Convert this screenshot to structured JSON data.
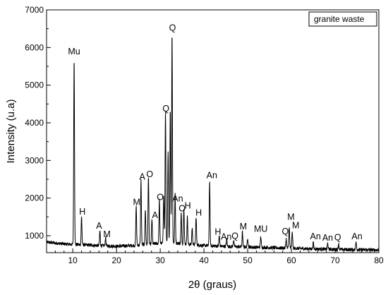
{
  "chart_data": {
    "type": "line",
    "xlabel": "2θ (graus)",
    "ylabel": "Intensity (u.a)",
    "xlim": [
      4,
      80
    ],
    "ylim": [
      550,
      7000
    ],
    "xticks": [
      10,
      20,
      30,
      40,
      50,
      60,
      70,
      80
    ],
    "yticks": [
      1000,
      2000,
      3000,
      4000,
      5000,
      6000,
      7000
    ],
    "grid": false,
    "legend": {
      "position": "top-right",
      "entries": [
        "granite waste"
      ]
    },
    "series": [
      {
        "name": "granite waste",
        "baseline": [
          [
            4,
            830
          ],
          [
            8,
            780
          ],
          [
            12,
            760
          ],
          [
            16,
            740
          ],
          [
            20,
            720
          ],
          [
            24,
            740
          ],
          [
            28,
            780
          ],
          [
            32,
            820
          ],
          [
            36,
            780
          ],
          [
            40,
            740
          ],
          [
            44,
            720
          ],
          [
            50,
            700
          ],
          [
            56,
            680
          ],
          [
            62,
            660
          ],
          [
            68,
            640
          ],
          [
            74,
            630
          ],
          [
            80,
            620
          ]
        ],
        "peaks": [
          {
            "x": 10.3,
            "y": 5700
          },
          {
            "x": 12.0,
            "y": 1500
          },
          {
            "x": 16.2,
            "y": 1130
          },
          {
            "x": 17.5,
            "y": 950
          },
          {
            "x": 24.5,
            "y": 1800
          },
          {
            "x": 25.6,
            "y": 2480
          },
          {
            "x": 26.6,
            "y": 1700
          },
          {
            "x": 27.3,
            "y": 2600
          },
          {
            "x": 28.1,
            "y": 1450
          },
          {
            "x": 29.8,
            "y": 1950
          },
          {
            "x": 30.8,
            "y": 2100
          },
          {
            "x": 31.2,
            "y": 4250
          },
          {
            "x": 31.8,
            "y": 3200
          },
          {
            "x": 32.3,
            "y": 4350
          },
          {
            "x": 32.7,
            "y": 6400
          },
          {
            "x": 33.4,
            "y": 2100
          },
          {
            "x": 34.8,
            "y": 1600
          },
          {
            "x": 35.4,
            "y": 1750
          },
          {
            "x": 36.2,
            "y": 1500
          },
          {
            "x": 37.3,
            "y": 1200
          },
          {
            "x": 38.2,
            "y": 1500
          },
          {
            "x": 41.3,
            "y": 2450
          },
          {
            "x": 43.5,
            "y": 1000
          },
          {
            "x": 45.2,
            "y": 900
          },
          {
            "x": 46.8,
            "y": 900
          },
          {
            "x": 48.8,
            "y": 1100
          },
          {
            "x": 50.0,
            "y": 950
          },
          {
            "x": 53.0,
            "y": 980
          },
          {
            "x": 58.8,
            "y": 920
          },
          {
            "x": 59.5,
            "y": 1250
          },
          {
            "x": 60.2,
            "y": 1100
          },
          {
            "x": 65.0,
            "y": 820
          },
          {
            "x": 68.3,
            "y": 800
          },
          {
            "x": 70.8,
            "y": 790
          },
          {
            "x": 74.8,
            "y": 850
          }
        ]
      }
    ],
    "annotations": [
      {
        "text": "Mu",
        "x": 10.3,
        "y": 5820
      },
      {
        "text": "H",
        "x": 12.2,
        "y": 1560
      },
      {
        "text": "A",
        "x": 16.0,
        "y": 1190
      },
      {
        "text": "M",
        "x": 17.8,
        "y": 960
      },
      {
        "text": "M",
        "x": 24.6,
        "y": 1820
      },
      {
        "text": "A",
        "x": 25.9,
        "y": 2490
      },
      {
        "text": "O",
        "x": 27.6,
        "y": 2560
      },
      {
        "text": "A",
        "x": 28.8,
        "y": 1470
      },
      {
        "text": "O",
        "x": 30.0,
        "y": 1950
      },
      {
        "text": "Q",
        "x": 31.3,
        "y": 4300
      },
      {
        "text": "Q",
        "x": 32.8,
        "y": 6450
      },
      {
        "text": "An",
        "x": 34.0,
        "y": 1910
      },
      {
        "text": "O",
        "x": 35.0,
        "y": 1650
      },
      {
        "text": "H",
        "x": 36.3,
        "y": 1720
      },
      {
        "text": "H",
        "x": 38.8,
        "y": 1530
      },
      {
        "text": "An",
        "x": 41.8,
        "y": 2530
      },
      {
        "text": "H",
        "x": 43.2,
        "y": 1030
      },
      {
        "text": "An",
        "x": 45.1,
        "y": 900
      },
      {
        "text": "Q",
        "x": 47.1,
        "y": 920
      },
      {
        "text": "M",
        "x": 49.0,
        "y": 1170
      },
      {
        "text": "MU",
        "x": 53.0,
        "y": 1100
      },
      {
        "text": "Q",
        "x": 58.6,
        "y": 1040
      },
      {
        "text": "M",
        "x": 59.9,
        "y": 1420
      },
      {
        "text": "M",
        "x": 61.0,
        "y": 1200
      },
      {
        "text": "An",
        "x": 65.5,
        "y": 910
      },
      {
        "text": "An",
        "x": 68.3,
        "y": 870
      },
      {
        "text": "Q",
        "x": 70.6,
        "y": 880
      },
      {
        "text": "An",
        "x": 75.0,
        "y": 910
      }
    ]
  }
}
